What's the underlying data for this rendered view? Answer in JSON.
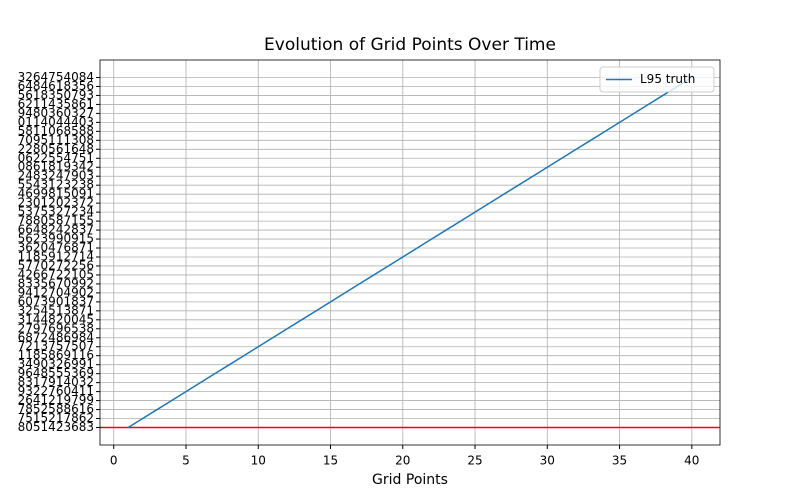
{
  "chart_data": {
    "type": "line",
    "title": "Evolution of Grid Points Over Time",
    "xlabel": "Grid Points",
    "categories": [
      "8051423683",
      "7515217862",
      "7852588616",
      "2641219799",
      "9322760411",
      "8317914032",
      "9648555369",
      "3490326991",
      "1185869116",
      "7213757507",
      "6872486984",
      "2797696538",
      "3144820045",
      "3254513871",
      "6073901837",
      "9412704902",
      "8335670992",
      "4266722105",
      "5770272256",
      "1185912714",
      "3620476871",
      "5623990915",
      "6648242837",
      "7880587155",
      "5375327234",
      "2301202372",
      "4699815091",
      "5543123238",
      "2483247903",
      "0861819342",
      "0622554751",
      "2280561648",
      "7095111308",
      "5811068588",
      "0114044403",
      "9480360327",
      "6211435861",
      "5618350793",
      "6484618356",
      "3264754084"
    ],
    "series": [
      {
        "name": "L95 truth",
        "color": "#1f77b4",
        "x": [
          1,
          2,
          3,
          4,
          5,
          6,
          7,
          8,
          9,
          10,
          11,
          12,
          13,
          14,
          15,
          16,
          17,
          18,
          19,
          20,
          21,
          22,
          23,
          24,
          25,
          26,
          27,
          28,
          29,
          30,
          31,
          32,
          33,
          34,
          35,
          36,
          37,
          38,
          39,
          40
        ],
        "values": [
          "8051423683",
          "7515217862",
          "7852588616",
          "2641219799",
          "9322760411",
          "8317914032",
          "9648555369",
          "3490326991",
          "1185869116",
          "7213757507",
          "6872486984",
          "2797696538",
          "3144820045",
          "3254513871",
          "6073901837",
          "9412704902",
          "8335670992",
          "4266722105",
          "5770272256",
          "1185912714",
          "3620476871",
          "5623990915",
          "6648242837",
          "7880587155",
          "5375327234",
          "2301202372",
          "4699815091",
          "5543123238",
          "2483247903",
          "0861819342",
          "0622554751",
          "2280561648",
          "7095111308",
          "5811068588",
          "0114044403",
          "9480360327",
          "6211435861",
          "5618350793",
          "6484618356",
          "3264754084"
        ]
      }
    ],
    "hline": {
      "value": "8051423683",
      "color": "#ff0000"
    },
    "xlim": [
      -0.95,
      41.95
    ],
    "xticks": [
      0,
      5,
      10,
      15,
      20,
      25,
      30,
      35,
      40
    ],
    "ylim": [
      -1.95,
      40.95
    ],
    "grid": true,
    "legend": "upper right"
  }
}
